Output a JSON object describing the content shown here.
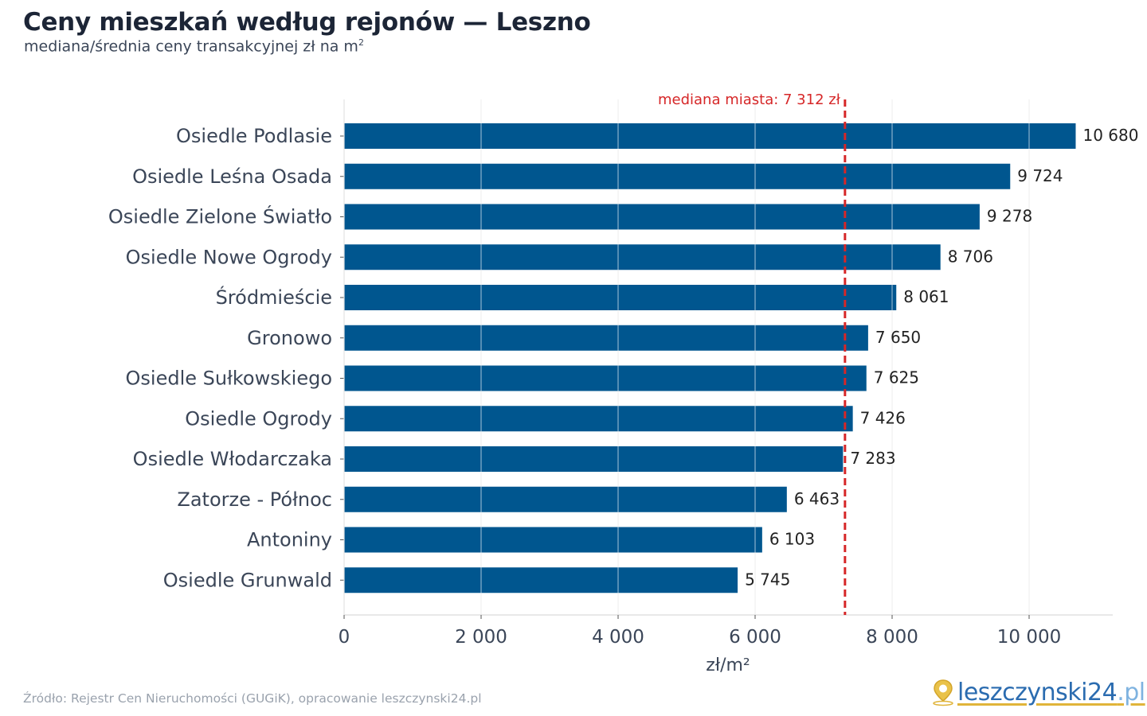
{
  "header": {
    "title": "Ceny mieszkań według rejonów — Leszno",
    "subtitle": "mediana/średnia ceny transakcyjnej zł na m",
    "subtitle_sup": "2"
  },
  "chart_data": {
    "type": "bar",
    "orientation": "horizontal",
    "categories": [
      "Osiedle Podlasie",
      "Osiedle Leśna Osada",
      "Osiedle Zielone Światło",
      "Osiedle Nowe Ogrody",
      "Śródmieście",
      "Gronowo",
      "Osiedle Sułkowskiego",
      "Osiedle Ogrody",
      "Osiedle Włodarczaka",
      "Zatorze - Północ",
      "Antoniny",
      "Osiedle Grunwald"
    ],
    "values": [
      10680,
      9724,
      9278,
      8706,
      8061,
      7650,
      7625,
      7426,
      7283,
      6463,
      6103,
      5745
    ],
    "value_labels": [
      "10 680",
      "9 724",
      "9 278",
      "8 706",
      "8 061",
      "7 650",
      "7 625",
      "7 426",
      "7 283",
      "6 463",
      "6 103",
      "5 745"
    ],
    "xlabel": "zł/m²",
    "xlim": [
      0,
      11200
    ],
    "xticks": [
      0,
      2000,
      4000,
      6000,
      8000,
      10000
    ],
    "xtick_labels": [
      "0",
      "2 000",
      "4 000",
      "6 000",
      "8 000",
      "10 000"
    ],
    "grid": "vertical",
    "reference_line": {
      "value": 7312,
      "label": "mediana miasta: 7 312 zł",
      "color": "#d62728",
      "style": "dashed"
    },
    "bar_color": "#00568f"
  },
  "footer": {
    "source": "Źródło: Rejestr Cen Nieruchomości (GUGiK), opracowanie leszczynski24.pl",
    "logo_text": "leszczynski24",
    "logo_suffix": ".pl",
    "logo_icon": "map-pin-icon"
  }
}
